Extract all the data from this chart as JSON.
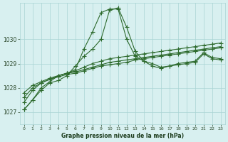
{
  "title": "Graphe pression niveau de la mer (hPa)",
  "background_color": "#d8f0f0",
  "grid_color": "#aad4d4",
  "line_color": "#2d6a2d",
  "x_labels": [
    "0",
    "1",
    "2",
    "3",
    "4",
    "5",
    "6",
    "7",
    "8",
    "9",
    "10",
    "11",
    "12",
    "13",
    "14",
    "15",
    "16",
    "17",
    "18",
    "19",
    "20",
    "21",
    "22",
    "23"
  ],
  "ylim": [
    1026.5,
    1031.5
  ],
  "yticks": [
    1027,
    1028,
    1029,
    1030
  ],
  "series": [
    [
      1027.1,
      1027.5,
      1027.9,
      1028.2,
      1028.3,
      1028.5,
      1028.9,
      1029.3,
      1029.6,
      1030.0,
      1031.2,
      1031.3,
      1030.5,
      1029.5,
      1029.1,
      1028.9,
      1028.8,
      1028.9,
      1028.95,
      1029.0,
      1029.05,
      1029.4,
      1029.2,
      1029.15
    ],
    [
      1027.1,
      1027.5,
      1028.0,
      1028.25,
      1028.5,
      1028.6,
      1028.75,
      1029.6,
      1030.3,
      1031.1,
      1031.25,
      1031.25,
      1030.0,
      1029.3,
      1029.1,
      1029.0,
      1028.85,
      1028.9,
      1029.0,
      1029.05,
      1029.1,
      1029.45,
      1029.25,
      1029.2
    ],
    [
      1027.4,
      1027.9,
      1028.2,
      1028.35,
      1028.5,
      1028.6,
      1028.7,
      1028.85,
      1029.0,
      1029.1,
      1029.2,
      1029.25,
      1029.3,
      1029.35,
      1029.4,
      1029.45,
      1029.5,
      1029.55,
      1029.6,
      1029.65,
      1029.7,
      1029.75,
      1029.8,
      1029.85
    ],
    [
      1027.6,
      1028.0,
      1028.2,
      1028.35,
      1028.45,
      1028.55,
      1028.6,
      1028.7,
      1028.8,
      1028.9,
      1028.95,
      1029.0,
      1029.05,
      1029.15,
      1029.2,
      1029.25,
      1029.3,
      1029.35,
      1029.4,
      1029.45,
      1029.5,
      1029.55,
      1029.6,
      1029.65
    ],
    [
      1027.8,
      1028.1,
      1028.25,
      1028.4,
      1028.5,
      1028.6,
      1028.65,
      1028.75,
      1028.85,
      1028.95,
      1029.05,
      1029.1,
      1029.15,
      1029.2,
      1029.25,
      1029.3,
      1029.35,
      1029.4,
      1029.45,
      1029.5,
      1029.55,
      1029.6,
      1029.65,
      1029.7
    ]
  ]
}
